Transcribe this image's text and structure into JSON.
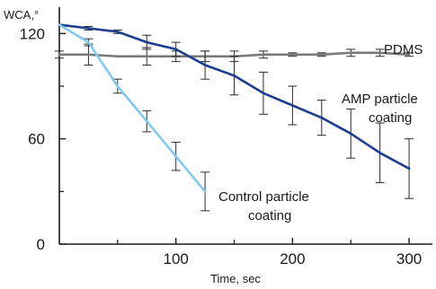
{
  "chart_data": {
    "type": "line",
    "title": "",
    "xlabel": "Time, sec",
    "ylabel": "WCA,°",
    "xlim": [
      0,
      320
    ],
    "ylim": [
      0,
      135
    ],
    "x_ticks": [
      100,
      200,
      300
    ],
    "x_minor_ticks": [
      50,
      150,
      250
    ],
    "y_ticks": [
      0,
      60,
      120
    ],
    "y_minor_ticks": [
      30,
      90
    ],
    "grid": false,
    "legend": "none",
    "series": [
      {
        "name": "PDMS",
        "color": "#7a7a7a",
        "x": [
          0,
          25,
          50,
          75,
          100,
          125,
          150,
          175,
          200,
          225,
          250,
          275,
          300
        ],
        "y": [
          108,
          108,
          107,
          107,
          107,
          107,
          107,
          108,
          108,
          108,
          109,
          109,
          108
        ],
        "err": [
          2,
          6,
          0,
          5,
          3,
          3,
          3,
          2,
          1,
          1,
          2,
          2,
          1
        ]
      },
      {
        "name": "AMP particle coating",
        "color": "#1d3d8f",
        "x": [
          0,
          25,
          50,
          75,
          100,
          125,
          150,
          175,
          200,
          225,
          250,
          275,
          300
        ],
        "y": [
          125,
          123,
          121,
          115,
          111,
          102,
          96,
          86,
          79,
          72,
          63,
          52,
          43
        ],
        "err": [
          0,
          1,
          1,
          4,
          4,
          8,
          11,
          12,
          11,
          10,
          14,
          17,
          17
        ]
      },
      {
        "name": "Control particle coating",
        "color": "#7fc9f2",
        "x": [
          0,
          25,
          50,
          75,
          100,
          125
        ],
        "y": [
          125,
          115,
          90,
          70,
          50,
          30
        ],
        "err": [
          0,
          2,
          4,
          6,
          8,
          11
        ]
      }
    ],
    "annotations": [
      {
        "text": "PDMS",
        "series": "PDMS"
      },
      {
        "text": "AMP particle",
        "series": "AMP particle coating"
      },
      {
        "text": "coating",
        "series": "AMP particle coating"
      },
      {
        "text": "Control particle",
        "series": "Control particle coating"
      },
      {
        "text": "coating",
        "series": "Control particle coating"
      }
    ]
  }
}
